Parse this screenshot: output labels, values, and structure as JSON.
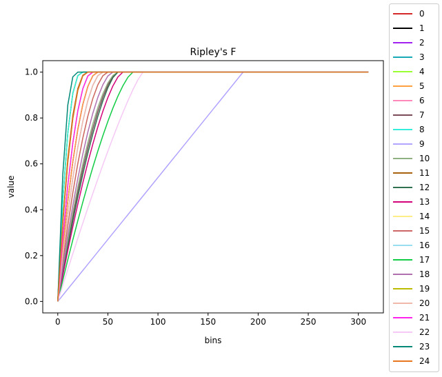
{
  "chart_data": {
    "type": "line",
    "title": "Ripley's F",
    "xlabel": "bins",
    "ylabel": "value",
    "xlim": [
      -15,
      325
    ],
    "ylim": [
      -0.05,
      1.05
    ],
    "xticks": [
      0,
      50,
      100,
      150,
      200,
      250,
      300
    ],
    "yticks": [
      0.0,
      0.2,
      0.4,
      0.6,
      0.8,
      1.0
    ],
    "grid": false,
    "legend_position": "right (outside plot)",
    "x_max": 310,
    "series": [
      {
        "name": "0",
        "color": "#d62728",
        "reach": 40,
        "shape": 2.0
      },
      {
        "name": "1",
        "color": "#000000",
        "reach": 25,
        "shape": 2.6
      },
      {
        "name": "2",
        "color": "#a020f0",
        "reach": 40,
        "shape": 2.0
      },
      {
        "name": "3",
        "color": "#17a9b8",
        "reach": 30,
        "shape": 2.3
      },
      {
        "name": "4",
        "color": "#99ff33",
        "reach": 25,
        "shape": 2.6
      },
      {
        "name": "5",
        "color": "#ffa040",
        "reach": 40,
        "shape": 2.0
      },
      {
        "name": "6",
        "color": "#ff88bb",
        "reach": 45,
        "shape": 1.9
      },
      {
        "name": "7",
        "color": "#7a4a58",
        "reach": 60,
        "shape": 1.6
      },
      {
        "name": "8",
        "color": "#33eedd",
        "reach": 25,
        "shape": 2.6
      },
      {
        "name": "9",
        "color": "#b0a4ff",
        "reach": 185,
        "shape": 1.0
      },
      {
        "name": "10",
        "color": "#8fb080",
        "reach": 60,
        "shape": 1.7
      },
      {
        "name": "11",
        "color": "#a8620d",
        "reach": 30,
        "shape": 2.4
      },
      {
        "name": "12",
        "color": "#2e7050",
        "reach": 60,
        "shape": 1.5
      },
      {
        "name": "13",
        "color": "#d4007a",
        "reach": 65,
        "shape": 1.5
      },
      {
        "name": "14",
        "color": "#ffee88",
        "reach": 50,
        "shape": 1.8
      },
      {
        "name": "15",
        "color": "#cc6666",
        "reach": 50,
        "shape": 1.8
      },
      {
        "name": "16",
        "color": "#99ddf0",
        "reach": 45,
        "shape": 1.9
      },
      {
        "name": "17",
        "color": "#11cc44",
        "reach": 75,
        "shape": 1.4
      },
      {
        "name": "18",
        "color": "#b070b0",
        "reach": 55,
        "shape": 1.7
      },
      {
        "name": "19",
        "color": "#bbbb00",
        "reach": 35,
        "shape": 2.1
      },
      {
        "name": "20",
        "color": "#f0b8a8",
        "reach": 45,
        "shape": 1.9
      },
      {
        "name": "21",
        "color": "#ff22ee",
        "reach": 35,
        "shape": 2.1
      },
      {
        "name": "22",
        "color": "#f5c8f5",
        "reach": 85,
        "shape": 1.2
      },
      {
        "name": "23",
        "color": "#008877",
        "reach": 20,
        "shape": 2.8
      },
      {
        "name": "24",
        "color": "#e87520",
        "reach": 30,
        "shape": 2.3
      }
    ]
  }
}
